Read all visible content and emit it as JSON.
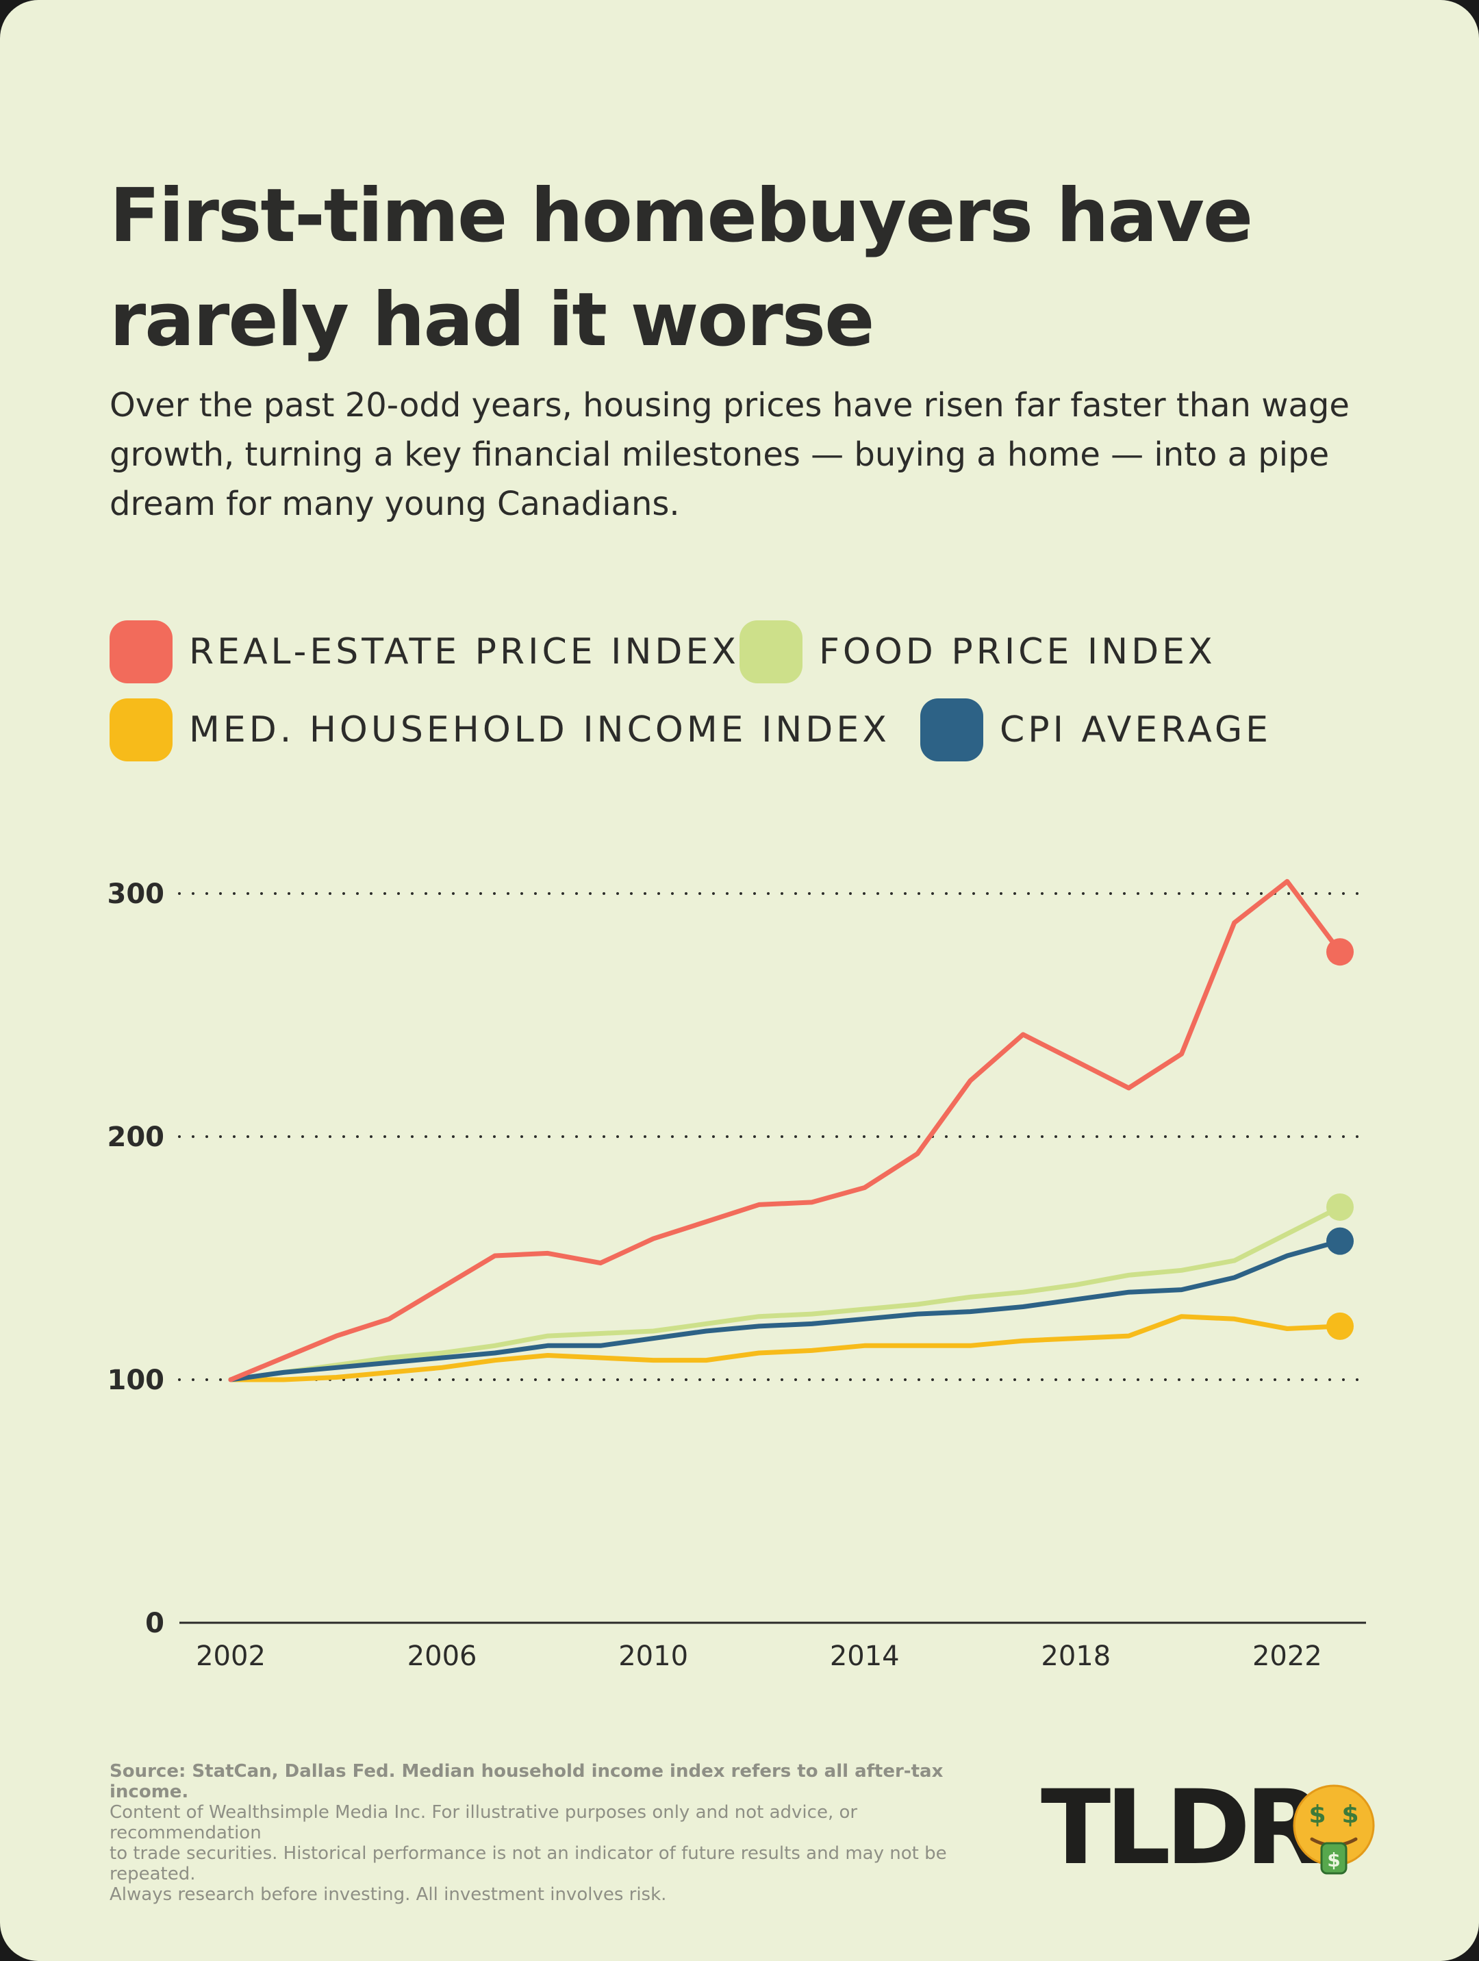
{
  "title": "First-time homebuyers have rarely had it worse",
  "subtitle": "Over the past 20-odd years, housing prices have risen far faster than wage growth, turning a key financial milestones — buying a home — into a pipe dream for many young Canadians.",
  "colors": {
    "background": "#ecf1d7",
    "text": "#2c2c2a",
    "real_estate": "#f26b5b",
    "food": "#cde08a",
    "income": "#f7bb1a",
    "cpi": "#2d6286"
  },
  "legend": [
    {
      "label": "REAL-ESTATE PRICE INDEX",
      "color": "#f26b5b"
    },
    {
      "label": "FOOD PRICE INDEX",
      "color": "#cde08a"
    },
    {
      "label": "MED. HOUSEHOLD INCOME INDEX",
      "color": "#f7bb1a"
    },
    {
      "label": "CPI AVERAGE",
      "color": "#2d6286"
    }
  ],
  "chart_data": {
    "type": "line",
    "x": [
      2002,
      2003,
      2004,
      2005,
      2006,
      2007,
      2008,
      2009,
      2010,
      2011,
      2012,
      2013,
      2014,
      2015,
      2016,
      2017,
      2018,
      2019,
      2020,
      2021,
      2022,
      2023
    ],
    "xticks": [
      "2002",
      "2006",
      "2010",
      "2014",
      "2018",
      "2022"
    ],
    "yticks": [
      "0",
      "100",
      "200",
      "300"
    ],
    "ylim": [
      0,
      300
    ],
    "grid": "dotted horizontal at 100, 200, 300",
    "series": [
      {
        "name": "REAL-ESTATE PRICE INDEX",
        "color": "#f26b5b",
        "values": [
          100,
          109,
          118,
          125,
          138,
          151,
          152,
          148,
          158,
          165,
          172,
          173,
          179,
          193,
          223,
          242,
          231,
          220,
          234,
          288,
          305,
          276
        ]
      },
      {
        "name": "FOOD PRICE INDEX",
        "color": "#cde08a",
        "values": [
          100,
          103,
          106,
          109,
          111,
          114,
          118,
          119,
          120,
          123,
          126,
          127,
          129,
          131,
          134,
          136,
          139,
          143,
          145,
          149,
          160,
          171
        ]
      },
      {
        "name": "MED. HOUSEHOLD INCOME INDEX",
        "color": "#f7bb1a",
        "values": [
          100,
          100,
          101,
          103,
          105,
          108,
          110,
          109,
          108,
          108,
          111,
          112,
          114,
          114,
          114,
          116,
          117,
          118,
          126,
          125,
          121,
          122
        ]
      },
      {
        "name": "CPI AVERAGE",
        "color": "#2d6286",
        "values": [
          100,
          103,
          105,
          107,
          109,
          111,
          114,
          114,
          117,
          120,
          122,
          123,
          125,
          127,
          128,
          130,
          133,
          136,
          137,
          142,
          151,
          157
        ]
      }
    ]
  },
  "source": {
    "bold": "Source: StatCan, Dallas Fed. Median household income index refers to all after-tax income.",
    "line1": "Content of Wealthsimple Media Inc. For illustrative purposes only and not advice, or recommendation",
    "line2": "to trade securities. Historical performance is not an indicator of future results and may not be repeated.",
    "line3": "Always research before investing. All investment involves risk."
  },
  "brand": {
    "wordmark": "TLDR",
    "icon": "money-mouth-face-icon"
  }
}
